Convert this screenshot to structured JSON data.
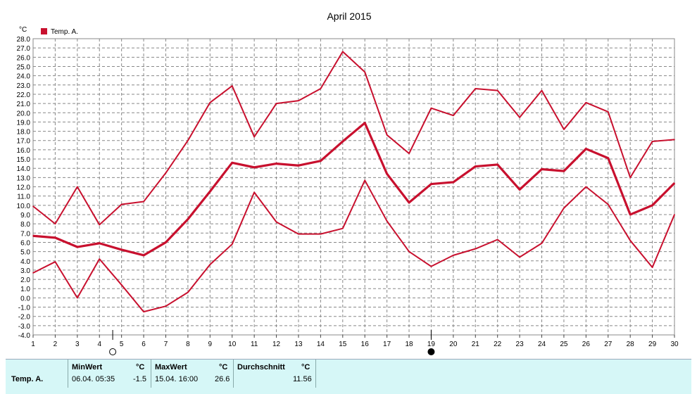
{
  "chart_data": {
    "type": "line",
    "title": "April 2015",
    "ylabel": "°C",
    "xlim": [
      1,
      30
    ],
    "ylim": [
      -4,
      28
    ],
    "x": [
      1,
      2,
      3,
      4,
      5,
      6,
      7,
      8,
      9,
      10,
      11,
      12,
      13,
      14,
      15,
      16,
      17,
      18,
      19,
      20,
      21,
      22,
      23,
      24,
      25,
      26,
      27,
      28,
      29,
      30
    ],
    "x_tick_labels": [
      "1",
      "2",
      "3",
      "4",
      "5",
      "6",
      "7",
      "8",
      "9",
      "10",
      "11",
      "12",
      "13",
      "14",
      "15",
      "16",
      "17",
      "18",
      "19",
      "20",
      "21",
      "22",
      "23",
      "24",
      "25",
      "26",
      "27",
      "28",
      "29",
      "30"
    ],
    "y_tick_labels": [
      "-4.0",
      "-3.0",
      "-2.0",
      "-1.0",
      "0.0",
      "1.0",
      "2.0",
      "3.0",
      "4.0",
      "5.0",
      "6.0",
      "7.0",
      "8.0",
      "9.0",
      "10.0",
      "11.0",
      "12.0",
      "13.0",
      "14.0",
      "15.0",
      "16.0",
      "17.0",
      "18.0",
      "19.0",
      "20.0",
      "21.0",
      "22.0",
      "23.0",
      "24.0",
      "25.0",
      "26.0",
      "27.0",
      "28.0"
    ],
    "grid": true,
    "legend": "top-left",
    "legend_entry": "Temp. A.",
    "color": "#c8102e",
    "series": [
      {
        "values": [
          9.9,
          8.0,
          12.0,
          7.9,
          10.1,
          10.4,
          13.5,
          17.0,
          21.1,
          22.9,
          17.4,
          21.0,
          21.3,
          22.6,
          26.6,
          24.4,
          17.6,
          15.6,
          20.5,
          19.7,
          22.6,
          22.4,
          19.5,
          22.4,
          18.2,
          21.1,
          20.1,
          13.0,
          16.9,
          17.1
        ],
        "width": 2
      },
      {
        "values": [
          6.7,
          6.5,
          5.5,
          5.9,
          5.2,
          4.6,
          6.0,
          8.5,
          11.5,
          14.6,
          14.1,
          14.5,
          14.3,
          14.8,
          16.9,
          18.9,
          13.4,
          10.3,
          12.3,
          12.5,
          14.2,
          14.4,
          11.7,
          13.9,
          13.7,
          16.1,
          15.1,
          9.0,
          10.0,
          12.4
        ],
        "width": 3.2
      },
      {
        "values": [
          2.7,
          3.9,
          0.0,
          4.2,
          1.4,
          -1.5,
          -0.9,
          0.6,
          3.6,
          5.8,
          11.4,
          8.2,
          6.9,
          6.9,
          7.5,
          12.7,
          8.3,
          5.0,
          3.4,
          4.6,
          5.3,
          6.3,
          4.4,
          5.9,
          9.7,
          12.0,
          10.1,
          6.2,
          3.3,
          9.0
        ],
        "width": 2
      }
    ],
    "markers": [
      {
        "x": 4.6,
        "symbol": "new-moon-outline"
      },
      {
        "x": 19.0,
        "symbol": "full-moon-filled"
      }
    ]
  },
  "stats": {
    "row_label": "Temp. A.",
    "min_header": "MinWert",
    "min_unit": "°C",
    "min_datetime": "06.04.  05:35",
    "min_value": "-1.5",
    "max_header": "MaxWert",
    "max_unit": "°C",
    "max_datetime": "15.04.  16:00",
    "max_value": "26.6",
    "avg_header": "Durchschnitt",
    "avg_unit": "°C",
    "avg_value": "11.56"
  }
}
